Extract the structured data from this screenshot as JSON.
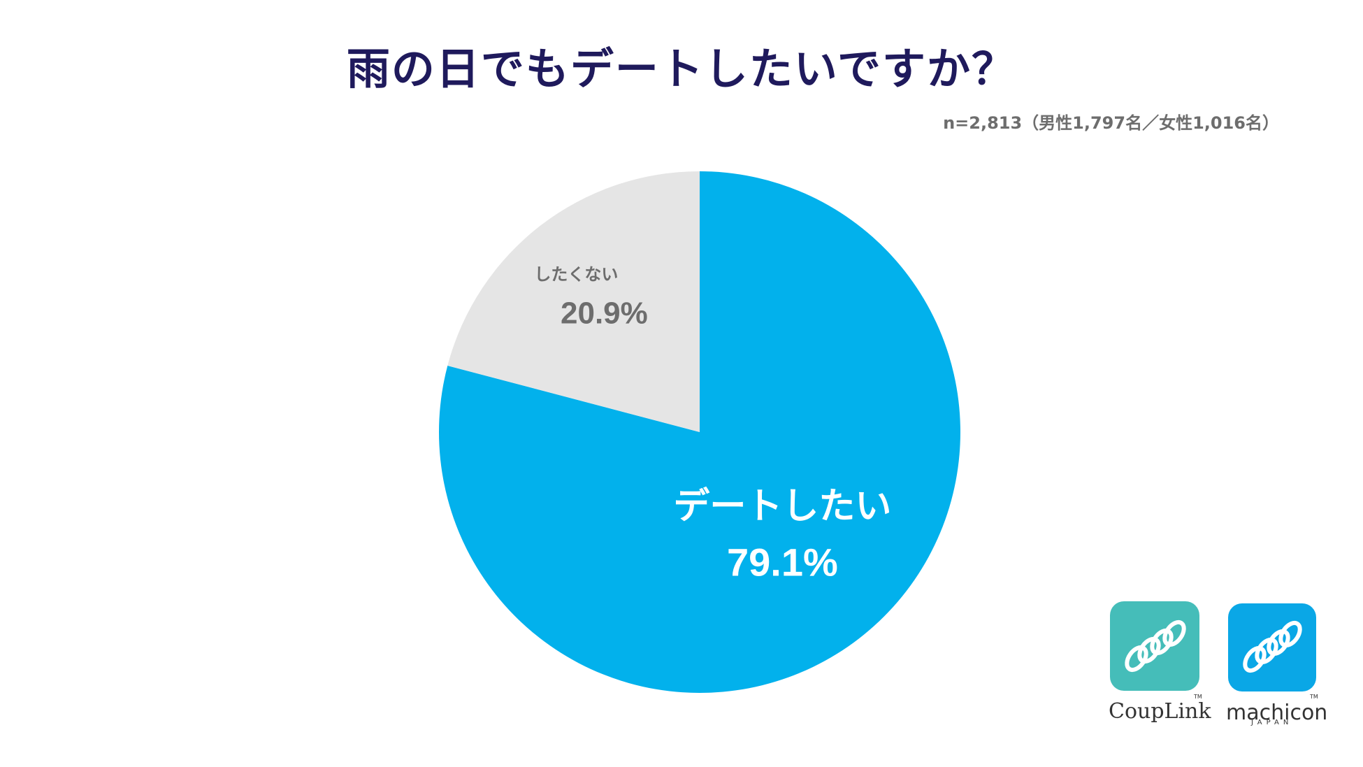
{
  "title": "雨の日でもデートしたいですか？",
  "sample_note": "n=2,813（男性1,797名／女性1,016名）",
  "chart_data": {
    "type": "pie",
    "title": "雨の日でもデートしたいですか？",
    "subtitle": "n=2,813（男性1,797名／女性1,016名）",
    "slices": [
      {
        "label": "デートしたい",
        "value": 79.1,
        "value_label": "79.1%",
        "color": "#02b1ec"
      },
      {
        "label": "したくない",
        "value": 20.9,
        "value_label": "20.9%",
        "color": "#e5e5e5"
      }
    ],
    "start_angle_deg": 0,
    "direction": "clockwise",
    "legend": "none"
  },
  "logos": {
    "couplink": {
      "name": "CoupLink",
      "color": "#45bdb9",
      "tm": "TM"
    },
    "machicon": {
      "name": "machicon",
      "sub": "JAPAN",
      "color": "#0aa7e6",
      "tm": "TM"
    }
  }
}
